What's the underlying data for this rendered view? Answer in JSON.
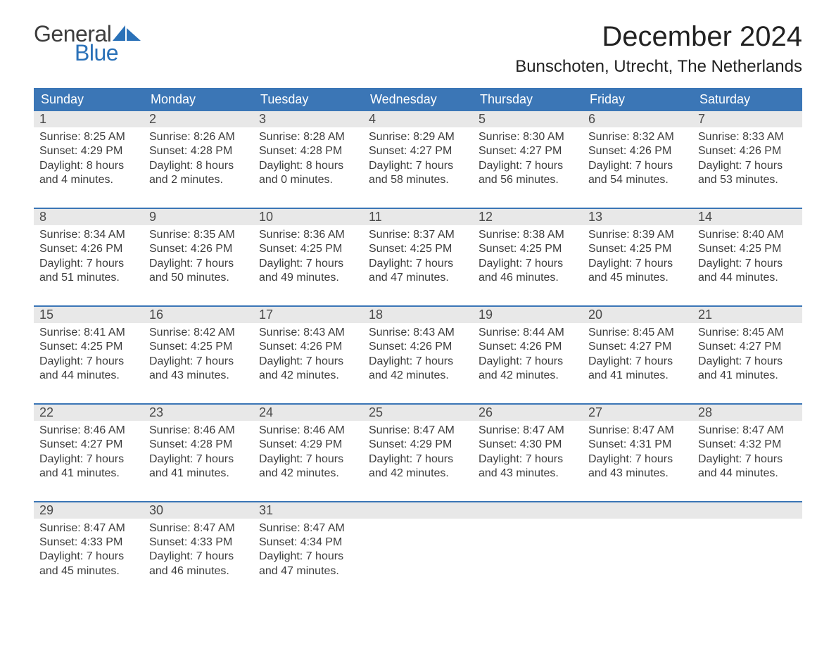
{
  "logo": {
    "word1": "General",
    "word2": "Blue",
    "text_color": "#3d3d3d",
    "accent_color": "#2a71b8"
  },
  "title": "December 2024",
  "location": "Bunschoten, Utrecht, The Netherlands",
  "colors": {
    "header_bg": "#3b76b6",
    "header_text": "#ffffff",
    "daynum_bg": "#e8e8e8",
    "text": "#3d3d3d",
    "rule": "#3b76b6"
  },
  "days_of_week": [
    "Sunday",
    "Monday",
    "Tuesday",
    "Wednesday",
    "Thursday",
    "Friday",
    "Saturday"
  ],
  "weeks": [
    [
      {
        "n": "1",
        "sr": "8:25 AM",
        "ss": "4:29 PM",
        "dl": "8 hours and 4 minutes."
      },
      {
        "n": "2",
        "sr": "8:26 AM",
        "ss": "4:28 PM",
        "dl": "8 hours and 2 minutes."
      },
      {
        "n": "3",
        "sr": "8:28 AM",
        "ss": "4:28 PM",
        "dl": "8 hours and 0 minutes."
      },
      {
        "n": "4",
        "sr": "8:29 AM",
        "ss": "4:27 PM",
        "dl": "7 hours and 58 minutes."
      },
      {
        "n": "5",
        "sr": "8:30 AM",
        "ss": "4:27 PM",
        "dl": "7 hours and 56 minutes."
      },
      {
        "n": "6",
        "sr": "8:32 AM",
        "ss": "4:26 PM",
        "dl": "7 hours and 54 minutes."
      },
      {
        "n": "7",
        "sr": "8:33 AM",
        "ss": "4:26 PM",
        "dl": "7 hours and 53 minutes."
      }
    ],
    [
      {
        "n": "8",
        "sr": "8:34 AM",
        "ss": "4:26 PM",
        "dl": "7 hours and 51 minutes."
      },
      {
        "n": "9",
        "sr": "8:35 AM",
        "ss": "4:26 PM",
        "dl": "7 hours and 50 minutes."
      },
      {
        "n": "10",
        "sr": "8:36 AM",
        "ss": "4:25 PM",
        "dl": "7 hours and 49 minutes."
      },
      {
        "n": "11",
        "sr": "8:37 AM",
        "ss": "4:25 PM",
        "dl": "7 hours and 47 minutes."
      },
      {
        "n": "12",
        "sr": "8:38 AM",
        "ss": "4:25 PM",
        "dl": "7 hours and 46 minutes."
      },
      {
        "n": "13",
        "sr": "8:39 AM",
        "ss": "4:25 PM",
        "dl": "7 hours and 45 minutes."
      },
      {
        "n": "14",
        "sr": "8:40 AM",
        "ss": "4:25 PM",
        "dl": "7 hours and 44 minutes."
      }
    ],
    [
      {
        "n": "15",
        "sr": "8:41 AM",
        "ss": "4:25 PM",
        "dl": "7 hours and 44 minutes."
      },
      {
        "n": "16",
        "sr": "8:42 AM",
        "ss": "4:25 PM",
        "dl": "7 hours and 43 minutes."
      },
      {
        "n": "17",
        "sr": "8:43 AM",
        "ss": "4:26 PM",
        "dl": "7 hours and 42 minutes."
      },
      {
        "n": "18",
        "sr": "8:43 AM",
        "ss": "4:26 PM",
        "dl": "7 hours and 42 minutes."
      },
      {
        "n": "19",
        "sr": "8:44 AM",
        "ss": "4:26 PM",
        "dl": "7 hours and 42 minutes."
      },
      {
        "n": "20",
        "sr": "8:45 AM",
        "ss": "4:27 PM",
        "dl": "7 hours and 41 minutes."
      },
      {
        "n": "21",
        "sr": "8:45 AM",
        "ss": "4:27 PM",
        "dl": "7 hours and 41 minutes."
      }
    ],
    [
      {
        "n": "22",
        "sr": "8:46 AM",
        "ss": "4:27 PM",
        "dl": "7 hours and 41 minutes."
      },
      {
        "n": "23",
        "sr": "8:46 AM",
        "ss": "4:28 PM",
        "dl": "7 hours and 41 minutes."
      },
      {
        "n": "24",
        "sr": "8:46 AM",
        "ss": "4:29 PM",
        "dl": "7 hours and 42 minutes."
      },
      {
        "n": "25",
        "sr": "8:47 AM",
        "ss": "4:29 PM",
        "dl": "7 hours and 42 minutes."
      },
      {
        "n": "26",
        "sr": "8:47 AM",
        "ss": "4:30 PM",
        "dl": "7 hours and 43 minutes."
      },
      {
        "n": "27",
        "sr": "8:47 AM",
        "ss": "4:31 PM",
        "dl": "7 hours and 43 minutes."
      },
      {
        "n": "28",
        "sr": "8:47 AM",
        "ss": "4:32 PM",
        "dl": "7 hours and 44 minutes."
      }
    ],
    [
      {
        "n": "29",
        "sr": "8:47 AM",
        "ss": "4:33 PM",
        "dl": "7 hours and 45 minutes."
      },
      {
        "n": "30",
        "sr": "8:47 AM",
        "ss": "4:33 PM",
        "dl": "7 hours and 46 minutes."
      },
      {
        "n": "31",
        "sr": "8:47 AM",
        "ss": "4:34 PM",
        "dl": "7 hours and 47 minutes."
      },
      null,
      null,
      null,
      null
    ]
  ],
  "labels": {
    "sunrise": "Sunrise: ",
    "sunset": "Sunset: ",
    "daylight": "Daylight: "
  }
}
